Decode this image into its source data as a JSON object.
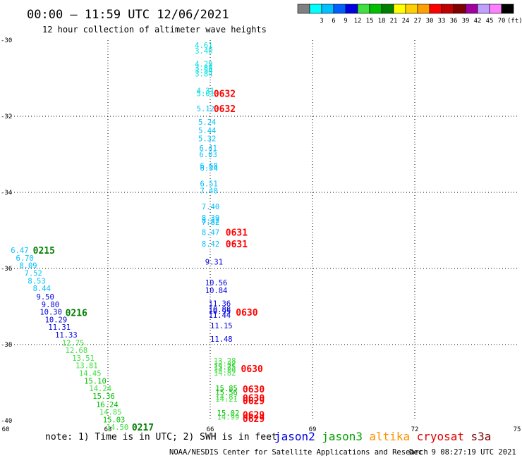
{
  "header": {
    "title": "00:00 — 11:59 UTC 12/06/2021",
    "subtitle": "12 hour collection of altimeter wave heights"
  },
  "colorbar": {
    "unit": "(ft)",
    "stops": [
      {
        "label": "",
        "color": "#808080"
      },
      {
        "label": "3",
        "color": "#00ffff"
      },
      {
        "label": "6",
        "color": "#00c0ff"
      },
      {
        "label": "9",
        "color": "#0060ff"
      },
      {
        "label": "12",
        "color": "#0000e0"
      },
      {
        "label": "15",
        "color": "#40e040"
      },
      {
        "label": "18",
        "color": "#00c000"
      },
      {
        "label": "21",
        "color": "#008000"
      },
      {
        "label": "24",
        "color": "#ffff00"
      },
      {
        "label": "27",
        "color": "#ffd000"
      },
      {
        "label": "30",
        "color": "#ffa000"
      },
      {
        "label": "33",
        "color": "#ff0000"
      },
      {
        "label": "36",
        "color": "#c00000"
      },
      {
        "label": "39",
        "color": "#800000"
      },
      {
        "label": "42",
        "color": "#a000a0"
      },
      {
        "label": "45",
        "color": "#c0a0ff"
      },
      {
        "label": "70",
        "color": "#ff80ff"
      },
      {
        "label": "",
        "color": "#000000"
      }
    ]
  },
  "chart_data": {
    "type": "scatter",
    "x_ticks": [
      "60",
      "63",
      "66",
      "69",
      "72",
      "75"
    ],
    "y_ticks": [
      "-30",
      "-32",
      "-34",
      "-36",
      "-38",
      "-40"
    ],
    "xlim": [
      60,
      75
    ],
    "ylim": [
      -40,
      -30
    ],
    "grid": true,
    "points": [
      {
        "x": 65.55,
        "y": -30.13,
        "label": "4.61",
        "color": "#00e0e0"
      },
      {
        "x": 65.55,
        "y": -30.28,
        "label": "3.40",
        "color": "#00e0e0"
      },
      {
        "x": 65.55,
        "y": -30.62,
        "label": "4.29",
        "color": "#00e0e0"
      },
      {
        "x": 65.55,
        "y": -30.72,
        "label": "3.88",
        "color": "#00e0e0"
      },
      {
        "x": 65.55,
        "y": -30.8,
        "label": "3.54",
        "color": "#00e0e0"
      },
      {
        "x": 65.55,
        "y": -30.88,
        "label": "3.84",
        "color": "#00e0e0"
      },
      {
        "x": 65.6,
        "y": -31.32,
        "label": "4.31",
        "color": "#00e0e0"
      },
      {
        "x": 65.6,
        "y": -31.4,
        "label": "5.01",
        "color": "#00e0e0"
      },
      {
        "x": 65.6,
        "y": -31.8,
        "label": "5.12",
        "color": "#00c0ff"
      },
      {
        "x": 65.65,
        "y": -32.15,
        "label": "5.24",
        "color": "#00c0ff"
      },
      {
        "x": 65.65,
        "y": -32.37,
        "label": "5.44",
        "color": "#00c0ff"
      },
      {
        "x": 65.65,
        "y": -32.58,
        "label": "5.32",
        "color": "#00c0ff"
      },
      {
        "x": 65.68,
        "y": -32.83,
        "label": "6.41",
        "color": "#00c0ff"
      },
      {
        "x": 65.68,
        "y": -33.0,
        "label": "6.03",
        "color": "#00c0ff"
      },
      {
        "x": 65.7,
        "y": -33.3,
        "label": "6.68",
        "color": "#00c0ff"
      },
      {
        "x": 65.7,
        "y": -33.36,
        "label": "6.44",
        "color": "#00c0ff"
      },
      {
        "x": 65.7,
        "y": -33.77,
        "label": "6.51",
        "color": "#00c0ff"
      },
      {
        "x": 65.7,
        "y": -33.95,
        "label": "7.40",
        "color": "#00c0ff"
      },
      {
        "x": 65.75,
        "y": -34.37,
        "label": "7.40",
        "color": "#00c0ff"
      },
      {
        "x": 65.75,
        "y": -34.67,
        "label": "8.39",
        "color": "#00c0ff"
      },
      {
        "x": 65.75,
        "y": -34.73,
        "label": "8.32",
        "color": "#00c0ff"
      },
      {
        "x": 65.75,
        "y": -34.78,
        "label": "7.82",
        "color": "#00c0ff"
      },
      {
        "x": 65.75,
        "y": -35.05,
        "label": "8.47",
        "color": "#00c0ff"
      },
      {
        "x": 65.75,
        "y": -35.35,
        "label": "8.42",
        "color": "#00c0ff"
      },
      {
        "x": 65.85,
        "y": -35.82,
        "label": "9.31",
        "color": "#0000e0"
      },
      {
        "x": 65.85,
        "y": -36.37,
        "label": "10.56",
        "color": "#0000e0"
      },
      {
        "x": 65.85,
        "y": -36.57,
        "label": "10.84",
        "color": "#0000e0"
      },
      {
        "x": 65.95,
        "y": -36.92,
        "label": "11.36",
        "color": "#0000e0"
      },
      {
        "x": 65.95,
        "y": -37.07,
        "label": "10.88",
        "color": "#0000e0"
      },
      {
        "x": 65.95,
        "y": -37.12,
        "label": "10.95",
        "color": "#0000e0"
      },
      {
        "x": 65.95,
        "y": -37.22,
        "label": "11.44",
        "color": "#0000e0"
      },
      {
        "x": 66.0,
        "y": -37.5,
        "label": "11.15",
        "color": "#0000e0"
      },
      {
        "x": 66.0,
        "y": -37.85,
        "label": "11.48",
        "color": "#0000e0"
      },
      {
        "x": 66.1,
        "y": -38.43,
        "label": "13.28",
        "color": "#40e040"
      },
      {
        "x": 66.1,
        "y": -38.5,
        "label": "13.37",
        "color": "#40e040"
      },
      {
        "x": 66.1,
        "y": -38.58,
        "label": "15.25",
        "color": "#00c000"
      },
      {
        "x": 66.1,
        "y": -38.66,
        "label": "14.26",
        "color": "#40e040"
      },
      {
        "x": 66.1,
        "y": -38.74,
        "label": "14.82",
        "color": "#40e040"
      },
      {
        "x": 66.15,
        "y": -39.15,
        "label": "15.85",
        "color": "#00c000"
      },
      {
        "x": 66.15,
        "y": -39.25,
        "label": "15.56",
        "color": "#00c000"
      },
      {
        "x": 66.15,
        "y": -39.37,
        "label": "14.87",
        "color": "#40e040"
      },
      {
        "x": 66.15,
        "y": -39.43,
        "label": "14.21",
        "color": "#40e040"
      },
      {
        "x": 66.2,
        "y": -39.8,
        "label": "15.02",
        "color": "#00c000"
      },
      {
        "x": 66.2,
        "y": -39.9,
        "label": "14.99",
        "color": "#40e040"
      },
      {
        "x": 60.15,
        "y": -35.52,
        "label": "6.47",
        "color": "#00c0ff"
      },
      {
        "x": 60.3,
        "y": -35.72,
        "label": "6.70",
        "color": "#00c0ff"
      },
      {
        "x": 60.4,
        "y": -35.92,
        "label": "8.09",
        "color": "#00c0ff"
      },
      {
        "x": 60.55,
        "y": -36.12,
        "label": "7.52",
        "color": "#00c0ff"
      },
      {
        "x": 60.65,
        "y": -36.32,
        "label": "8.53",
        "color": "#00c0ff"
      },
      {
        "x": 60.8,
        "y": -36.52,
        "label": "8.44",
        "color": "#00c0ff"
      },
      {
        "x": 60.9,
        "y": -36.74,
        "label": "9.50",
        "color": "#0000e0"
      },
      {
        "x": 61.05,
        "y": -36.94,
        "label": "9.80",
        "color": "#0000e0"
      },
      {
        "x": 61.0,
        "y": -37.14,
        "label": "10.30",
        "color": "#0000e0"
      },
      {
        "x": 61.15,
        "y": -37.34,
        "label": "10.29",
        "color": "#0000e0"
      },
      {
        "x": 61.25,
        "y": -37.54,
        "label": "11.31",
        "color": "#0000e0"
      },
      {
        "x": 61.45,
        "y": -37.74,
        "label": "11.33",
        "color": "#0000e0"
      },
      {
        "x": 61.65,
        "y": -37.95,
        "label": "12.75",
        "color": "#40e040"
      },
      {
        "x": 61.75,
        "y": -38.15,
        "label": "12.68",
        "color": "#40e040"
      },
      {
        "x": 61.95,
        "y": -38.35,
        "label": "13.51",
        "color": "#40e040"
      },
      {
        "x": 62.05,
        "y": -38.55,
        "label": "13.81",
        "color": "#40e040"
      },
      {
        "x": 62.15,
        "y": -38.75,
        "label": "14.45",
        "color": "#40e040"
      },
      {
        "x": 62.3,
        "y": -38.95,
        "label": "15.10",
        "color": "#00c000"
      },
      {
        "x": 62.45,
        "y": -39.15,
        "label": "14.24",
        "color": "#40e040"
      },
      {
        "x": 62.55,
        "y": -39.35,
        "label": "15.36",
        "color": "#00c000"
      },
      {
        "x": 62.65,
        "y": -39.57,
        "label": "16.24",
        "color": "#00c000"
      },
      {
        "x": 62.75,
        "y": -39.77,
        "label": "14.85",
        "color": "#40e040"
      },
      {
        "x": 62.85,
        "y": -39.97,
        "label": "15.03",
        "color": "#00c000"
      },
      {
        "x": 62.95,
        "y": -40.17,
        "label": "14.50",
        "color": "#40e040"
      }
    ],
    "pass_labels": [
      {
        "x": 66.1,
        "y": -31.4,
        "label": "0632",
        "color": "#ff0000"
      },
      {
        "x": 66.1,
        "y": -31.8,
        "label": "0632",
        "color": "#ff0000"
      },
      {
        "x": 66.45,
        "y": -35.05,
        "label": "0631",
        "color": "#ff0000"
      },
      {
        "x": 66.45,
        "y": -35.35,
        "label": "0631",
        "color": "#ff0000"
      },
      {
        "x": 66.75,
        "y": -37.15,
        "label": "0630",
        "color": "#ff0000"
      },
      {
        "x": 66.9,
        "y": -38.63,
        "label": "0630",
        "color": "#ff0000"
      },
      {
        "x": 66.95,
        "y": -39.17,
        "label": "0630",
        "color": "#ff0000"
      },
      {
        "x": 66.95,
        "y": -39.4,
        "label": "0630",
        "color": "#ff0000"
      },
      {
        "x": 66.95,
        "y": -39.47,
        "label": "0629",
        "color": "#ff0000"
      },
      {
        "x": 66.95,
        "y": -39.84,
        "label": "0629",
        "color": "#ff0000"
      },
      {
        "x": 66.95,
        "y": -39.94,
        "label": "0629",
        "color": "#ff0000"
      },
      {
        "x": 60.8,
        "y": -35.52,
        "label": "0215",
        "color": "#008000"
      },
      {
        "x": 61.75,
        "y": -37.16,
        "label": "0216",
        "color": "#008000"
      },
      {
        "x": 63.7,
        "y": -40.17,
        "label": "0217",
        "color": "#008000"
      }
    ]
  },
  "footer": {
    "note": "note: 1) Time is in UTC; 2) SWH is in feet",
    "legend": [
      {
        "label": "jason2",
        "color": "#0000e0"
      },
      {
        "label": "jason3",
        "color": "#00a000"
      },
      {
        "label": "altika",
        "color": "#ff9000"
      },
      {
        "label": "cryosat",
        "color": "#e00000"
      },
      {
        "label": "s3a",
        "color": "#800000"
      }
    ],
    "credit": "NOAA/NESDIS Center for Satellite Applications and Research",
    "timestamp": "Dec  9 08:27:19 UTC 2021"
  }
}
